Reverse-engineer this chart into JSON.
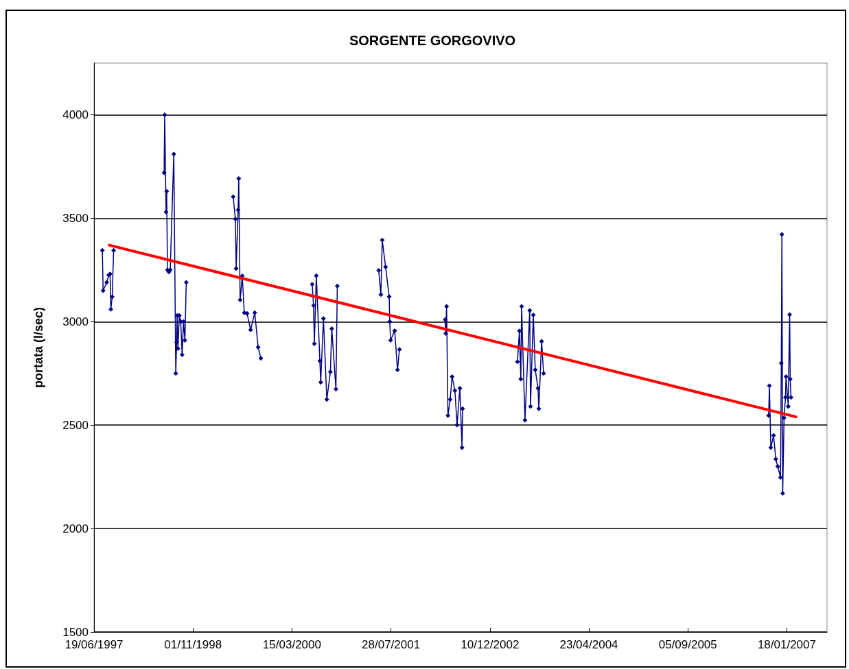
{
  "chart_data": {
    "type": "line",
    "title": "SORGENTE GORGOVIVO",
    "ylabel": "portata (l/sec)",
    "xlim": [
      "1997-06-19",
      "2007-08-09"
    ],
    "xticks": [
      {
        "value": "1997-06-19",
        "label": "19/06/1997"
      },
      {
        "value": "1998-11-01",
        "label": "01/11/1998"
      },
      {
        "value": "2000-03-15",
        "label": "15/03/2000"
      },
      {
        "value": "2001-07-28",
        "label": "28/07/2001"
      },
      {
        "value": "2002-12-10",
        "label": "10/12/2002"
      },
      {
        "value": "2004-04-23",
        "label": "23/04/2004"
      },
      {
        "value": "2005-09-05",
        "label": "05/09/2005"
      },
      {
        "value": "2007-01-18",
        "label": "18/01/2007"
      }
    ],
    "ylim": [
      1500,
      4250
    ],
    "yticks": [
      1500,
      2000,
      2500,
      3000,
      3500,
      4000
    ],
    "grid": "y",
    "marker": "diamond",
    "line_style": "solid",
    "series": [
      {
        "color": "#000080",
        "x": [
          "1997-07-31",
          "1997-08-04",
          "1997-08-22",
          "1997-09-01",
          "1997-09-08",
          "1997-09-12",
          "1997-09-19",
          "1997-09-26",
          null,
          "1998-06-08",
          "1998-06-11",
          "1998-06-18",
          "1998-06-21",
          "1998-06-25",
          "1998-07-02",
          "1998-07-09",
          "1998-07-27",
          "1998-08-06",
          "1998-08-10",
          "1998-08-13",
          "1998-08-17",
          "1998-08-24",
          "1998-08-31",
          "1998-09-07",
          "1998-09-14",
          "1998-09-21",
          "1998-09-28",
          null,
          "1999-05-23",
          "1999-06-03",
          "1999-06-07",
          "1999-06-17",
          "1999-06-20",
          "1999-06-27",
          "1999-07-08",
          "1999-07-18",
          "1999-08-01",
          "1999-08-19",
          "1999-09-09",
          "1999-09-26",
          "1999-10-10",
          null,
          "2000-06-25",
          "2000-07-02",
          "2000-07-06",
          "2000-07-16",
          "2000-08-03",
          "2000-08-07",
          "2000-08-21",
          "2000-09-07",
          "2000-09-25",
          "2000-10-02",
          "2000-10-23",
          "2000-10-30",
          null,
          "2001-05-27",
          "2001-06-07",
          "2001-06-14",
          "2001-07-01",
          "2001-07-19",
          "2001-07-22",
          "2001-07-26",
          "2001-08-16",
          "2001-08-30",
          "2001-09-09",
          null,
          "2002-04-28",
          "2002-05-01",
          "2002-05-05",
          "2002-05-12",
          "2002-05-23",
          "2002-06-02",
          "2002-06-16",
          "2002-06-27",
          "2002-07-11",
          "2002-07-22",
          "2002-07-25",
          null,
          "2003-04-28",
          "2003-05-08",
          "2003-05-15",
          "2003-05-19",
          "2003-06-05",
          "2003-06-29",
          "2003-07-03",
          "2003-07-17",
          "2003-07-27",
          "2003-08-10",
          "2003-08-14",
          "2003-08-28",
          "2003-09-07",
          null,
          "2006-10-18",
          "2006-10-22",
          "2006-10-29",
          "2006-11-12",
          "2006-11-23",
          "2006-12-03",
          "2006-12-17",
          "2006-12-21",
          "2006-12-24",
          "2006-12-28",
          "2007-01-04",
          "2007-01-11",
          "2007-01-14",
          "2007-01-25",
          "2007-02-01",
          "2007-02-04",
          "2007-02-08"
        ],
        "values": [
          3345,
          3150,
          3190,
          3225,
          3230,
          3060,
          3120,
          3345,
          null,
          3720,
          4000,
          3530,
          3630,
          3250,
          3240,
          3250,
          3810,
          2750,
          2900,
          3030,
          2870,
          3030,
          3000,
          2840,
          3000,
          2910,
          3190,
          null,
          3604,
          3496,
          3257,
          3540,
          3692,
          3105,
          3221,
          3043,
          3040,
          2960,
          3043,
          2877,
          2823,
          null,
          3181,
          3078,
          2893,
          3222,
          2810,
          2707,
          3015,
          2624,
          2757,
          2966,
          2674,
          3172,
          null,
          3248,
          3131,
          3394,
          3264,
          3121,
          3000,
          2910,
          2956,
          2767,
          2866,
          null,
          3010,
          2943,
          3074,
          2546,
          2624,
          2734,
          2667,
          2501,
          2678,
          2391,
          2579,
          null,
          2806,
          2955,
          2723,
          3074,
          2524,
          3054,
          2590,
          3032,
          2767,
          2678,
          2579,
          2905,
          2750,
          null,
          2546,
          2690,
          2391,
          2450,
          2336,
          2300,
          2247,
          2800,
          3422,
          2170,
          2535,
          2634,
          2734,
          2590,
          3034,
          2723,
          2634
        ]
      },
      {
        "type": "line",
        "color": "#ff0000",
        "marker": "none",
        "x": [
          "1997-09-04",
          "2007-03-05"
        ],
        "values": [
          3370,
          2540
        ]
      }
    ]
  }
}
